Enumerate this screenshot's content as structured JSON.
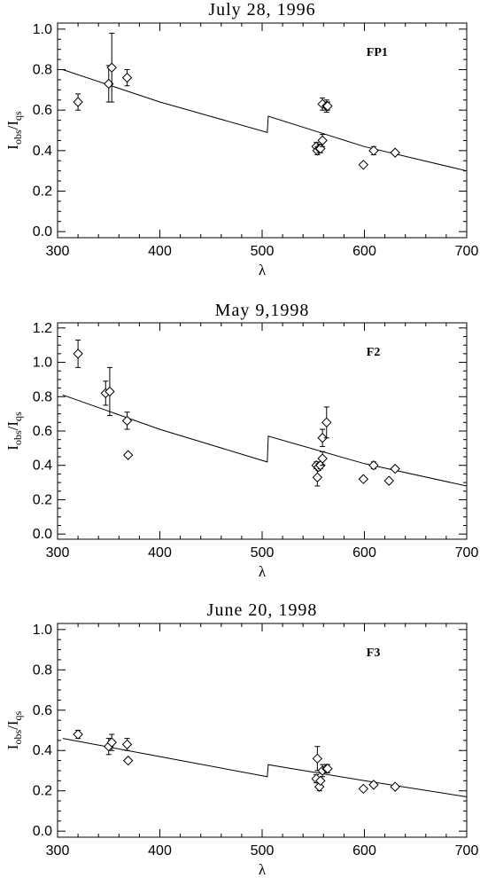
{
  "chart_data": [
    {
      "type": "scatter",
      "title": "July 28, 1996",
      "tag": "FP1",
      "xlabel": "λ",
      "ylabel": "I_obs/I_qs",
      "ylabel_main": "I",
      "ylabel_sub1": "obs",
      "ylabel_slash": "/I",
      "ylabel_sub2": "qs",
      "xlim": [
        300,
        700
      ],
      "ylim": [
        -0.03,
        1.03
      ],
      "xticks": [
        300,
        400,
        500,
        600,
        700
      ],
      "yticks": [
        0.0,
        0.2,
        0.4,
        0.6,
        0.8,
        1.0
      ],
      "ytick_labels": [
        "0.0",
        "0.2",
        "0.4",
        "0.6",
        "0.8",
        "1.0"
      ],
      "points": [
        {
          "x": 320,
          "y": 0.64,
          "err": 0.04
        },
        {
          "x": 350,
          "y": 0.73,
          "err": 0.09
        },
        {
          "x": 353,
          "y": 0.81,
          "err": 0.17
        },
        {
          "x": 368,
          "y": 0.76,
          "err": 0.04
        },
        {
          "x": 553,
          "y": 0.42,
          "err": 0.02
        },
        {
          "x": 554,
          "y": 0.4,
          "err": 0.02
        },
        {
          "x": 556,
          "y": 0.41,
          "err": 0.02
        },
        {
          "x": 557,
          "y": 0.41,
          "err": 0.02
        },
        {
          "x": 559,
          "y": 0.45,
          "err": 0.03
        },
        {
          "x": 559,
          "y": 0.63,
          "err": 0.03
        },
        {
          "x": 563,
          "y": 0.62,
          "err": 0.03
        },
        {
          "x": 564,
          "y": 0.62,
          "err": 0.02
        },
        {
          "x": 599,
          "y": 0.33,
          "err": 0.0
        },
        {
          "x": 609,
          "y": 0.4,
          "err": 0.02
        },
        {
          "x": 630,
          "y": 0.39,
          "err": 0.0
        }
      ],
      "model": [
        {
          "x": 305,
          "y": 0.8
        },
        {
          "x": 400,
          "y": 0.64
        },
        {
          "x": 505,
          "y": 0.49
        },
        {
          "x": 506,
          "y": 0.57
        },
        {
          "x": 600,
          "y": 0.42
        },
        {
          "x": 700,
          "y": 0.3
        }
      ]
    },
    {
      "type": "scatter",
      "title": "May 9,1998",
      "tag": "F2",
      "xlabel": "λ",
      "ylabel": "I_obs/I_qs",
      "ylabel_main": "I",
      "ylabel_sub1": "obs",
      "ylabel_slash": "/I",
      "ylabel_sub2": "qs",
      "xlim": [
        300,
        700
      ],
      "ylim": [
        -0.03,
        1.23
      ],
      "xticks": [
        300,
        400,
        500,
        600,
        700
      ],
      "yticks": [
        0.0,
        0.2,
        0.4,
        0.6,
        0.8,
        1.0,
        1.2
      ],
      "ytick_labels": [
        "0.0",
        "0.2",
        "0.4",
        "0.6",
        "0.8",
        "1.0",
        "1.2"
      ],
      "points": [
        {
          "x": 320,
          "y": 1.05,
          "err": 0.08
        },
        {
          "x": 347,
          "y": 0.82,
          "err": 0.07
        },
        {
          "x": 351,
          "y": 0.83,
          "err": 0.14
        },
        {
          "x": 368,
          "y": 0.66,
          "err": 0.05
        },
        {
          "x": 369,
          "y": 0.46,
          "err": 0.0
        },
        {
          "x": 553,
          "y": 0.4,
          "err": 0.02
        },
        {
          "x": 554,
          "y": 0.33,
          "err": 0.05
        },
        {
          "x": 555,
          "y": 0.39,
          "err": 0.02
        },
        {
          "x": 557,
          "y": 0.4,
          "err": 0.02
        },
        {
          "x": 559,
          "y": 0.44,
          "err": 0.04
        },
        {
          "x": 559,
          "y": 0.56,
          "err": 0.05
        },
        {
          "x": 563,
          "y": 0.65,
          "err": 0.09
        },
        {
          "x": 599,
          "y": 0.32,
          "err": 0.0
        },
        {
          "x": 609,
          "y": 0.4,
          "err": 0.02
        },
        {
          "x": 624,
          "y": 0.31,
          "err": 0.0
        },
        {
          "x": 630,
          "y": 0.38,
          "err": 0.0
        }
      ],
      "model": [
        {
          "x": 305,
          "y": 0.81
        },
        {
          "x": 400,
          "y": 0.61
        },
        {
          "x": 505,
          "y": 0.42
        },
        {
          "x": 506,
          "y": 0.57
        },
        {
          "x": 600,
          "y": 0.41
        },
        {
          "x": 700,
          "y": 0.28
        }
      ]
    },
    {
      "type": "scatter",
      "title": "June 20, 1998",
      "tag": "F3",
      "xlabel": "λ",
      "ylabel": "I_obs/I_qs",
      "ylabel_main": "I",
      "ylabel_sub1": "obs",
      "ylabel_slash": "/I",
      "ylabel_sub2": "qs",
      "xlim": [
        300,
        700
      ],
      "ylim": [
        -0.03,
        1.03
      ],
      "xticks": [
        300,
        400,
        500,
        600,
        700
      ],
      "yticks": [
        0.0,
        0.2,
        0.4,
        0.6,
        0.8,
        1.0
      ],
      "ytick_labels": [
        "0.0",
        "0.2",
        "0.4",
        "0.6",
        "0.8",
        "1.0"
      ],
      "points": [
        {
          "x": 320,
          "y": 0.48,
          "err": 0.02
        },
        {
          "x": 350,
          "y": 0.42,
          "err": 0.04
        },
        {
          "x": 353,
          "y": 0.44,
          "err": 0.04
        },
        {
          "x": 368,
          "y": 0.43,
          "err": 0.03
        },
        {
          "x": 369,
          "y": 0.35,
          "err": 0.0
        },
        {
          "x": 553,
          "y": 0.26,
          "err": 0.02
        },
        {
          "x": 554,
          "y": 0.36,
          "err": 0.06
        },
        {
          "x": 556,
          "y": 0.22,
          "err": 0.02
        },
        {
          "x": 557,
          "y": 0.25,
          "err": 0.01
        },
        {
          "x": 559,
          "y": 0.3,
          "err": 0.03
        },
        {
          "x": 563,
          "y": 0.31,
          "err": 0.02
        },
        {
          "x": 564,
          "y": 0.31,
          "err": 0.02
        },
        {
          "x": 599,
          "y": 0.21,
          "err": 0.0
        },
        {
          "x": 609,
          "y": 0.23,
          "err": 0.01
        },
        {
          "x": 630,
          "y": 0.22,
          "err": 0.0
        }
      ],
      "model": [
        {
          "x": 305,
          "y": 0.46
        },
        {
          "x": 400,
          "y": 0.37
        },
        {
          "x": 505,
          "y": 0.27
        },
        {
          "x": 506,
          "y": 0.33
        },
        {
          "x": 600,
          "y": 0.25
        },
        {
          "x": 700,
          "y": 0.17
        }
      ]
    }
  ]
}
